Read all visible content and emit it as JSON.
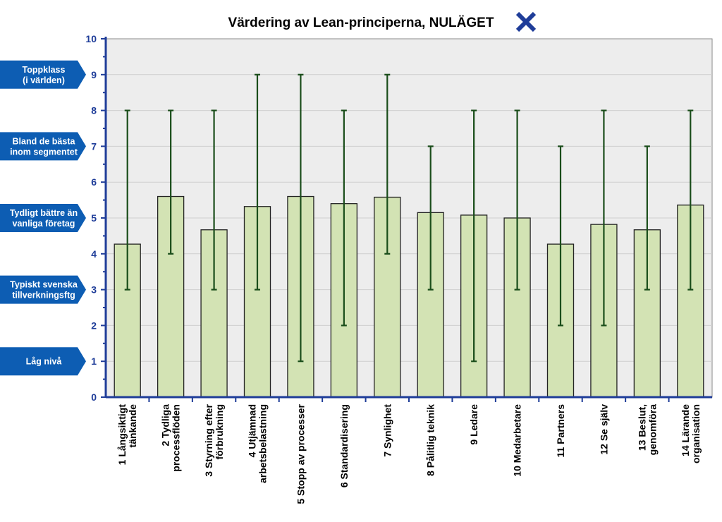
{
  "colors": {
    "plot_bg": "#ededed",
    "gridline": "#cfcfcf",
    "axis": "#1f3d99",
    "bar_fill": "#d3e3b4",
    "bar_stroke": "#222222",
    "error_bar": "#1a4d1a",
    "band_bg": "#0d5db3",
    "band_text": "#ffffff",
    "marker": "#1f3d99"
  },
  "chart_data": {
    "type": "bar",
    "title": "Värdering av Lean-principerna, NULÄGET",
    "title_marker_icon": "x-mark-icon",
    "xlabel": "",
    "ylabel": "",
    "ylim": [
      0,
      10
    ],
    "yticks": [
      "0",
      "1",
      "2",
      "3",
      "4",
      "5",
      "6",
      "7",
      "8",
      "9",
      "10"
    ],
    "grid": true,
    "categories": [
      [
        "1 Långsiktigt",
        "tänkande"
      ],
      [
        "2 Tydliga",
        "processflöden"
      ],
      [
        "3 Styrning efter",
        "förbrukning"
      ],
      [
        "4 Utjämnad",
        "arbetsbelastning"
      ],
      [
        "5 Stopp av processer"
      ],
      [
        "6 Standardisering"
      ],
      [
        "7 Synlighet"
      ],
      [
        "8 Pålitlig teknik"
      ],
      [
        "9 Ledare"
      ],
      [
        "10 Medarbetare"
      ],
      [
        "11 Partners"
      ],
      [
        "12 Se själv"
      ],
      [
        "13 Beslut,",
        "genomföra"
      ],
      [
        "14 Lärande",
        "organisation"
      ]
    ],
    "values": [
      4.27,
      5.6,
      4.67,
      5.32,
      5.6,
      5.4,
      5.58,
      5.15,
      5.08,
      5.0,
      4.27,
      4.82,
      4.67,
      5.36
    ],
    "error_min": [
      3,
      4,
      3,
      3,
      1,
      2,
      4,
      3,
      1,
      3,
      2,
      2,
      3,
      3
    ],
    "error_max": [
      8,
      8,
      8,
      9,
      9,
      8,
      9,
      7,
      8,
      8,
      7,
      8,
      7,
      8
    ],
    "level_labels": [
      {
        "y": 9,
        "lines": [
          "Toppklass",
          "(i världen)"
        ]
      },
      {
        "y": 7,
        "lines": [
          "Bland  de bästa",
          "inom segmentet"
        ]
      },
      {
        "y": 5,
        "lines": [
          "Tydligt bättre än",
          "vanliga företag"
        ]
      },
      {
        "y": 3,
        "lines": [
          "Typiskt svenska",
          "tillverkningsftg"
        ]
      },
      {
        "y": 1,
        "lines": [
          "Låg nivå"
        ]
      }
    ]
  }
}
